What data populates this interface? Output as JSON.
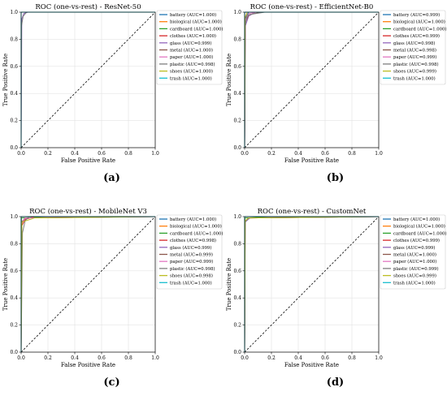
{
  "colors": [
    "#1f77b4",
    "#ff7f0e",
    "#2ca02c",
    "#d62728",
    "#9467bd",
    "#8c564b",
    "#e377c2",
    "#7f7f7f",
    "#bcbd22",
    "#17becf"
  ],
  "chart_data": [
    {
      "type": "line",
      "title": "ROC (one-vs-rest) - ResNet-50",
      "xlabel": "False Positive Rate",
      "ylabel": "True Positive Rate",
      "xlim": [
        0,
        1
      ],
      "ylim": [
        0,
        1
      ],
      "xticks": [
        "0.0",
        "0.2",
        "0.4",
        "0.6",
        "0.8",
        "1.0"
      ],
      "yticks": [
        "0.0",
        "0.2",
        "0.4",
        "0.6",
        "0.8",
        "1.0"
      ],
      "grid": true,
      "legend_position": "top-right",
      "caption": "(a)",
      "diagonal": true,
      "series": [
        {
          "name": "battery (AUC=1.000)",
          "x": [
            0,
            0.0,
            1
          ],
          "y": [
            0,
            1,
            1
          ]
        },
        {
          "name": "biological (AUC=1.000)",
          "x": [
            0,
            0.0,
            1
          ],
          "y": [
            0,
            1,
            1
          ]
        },
        {
          "name": "cardboard (AUC=1.000)",
          "x": [
            0,
            0.0,
            1
          ],
          "y": [
            0,
            1,
            1
          ]
        },
        {
          "name": "clothes (AUC=1.000)",
          "x": [
            0,
            0.0,
            1
          ],
          "y": [
            0,
            1,
            1
          ]
        },
        {
          "name": "glass (AUC=0.999)",
          "x": [
            0,
            0.005,
            0.02,
            0.05,
            1
          ],
          "y": [
            0,
            0.95,
            0.99,
            1,
            1
          ]
        },
        {
          "name": "metal (AUC=1.000)",
          "x": [
            0,
            0.0,
            1
          ],
          "y": [
            0,
            1,
            1
          ]
        },
        {
          "name": "paper (AUC=1.000)",
          "x": [
            0,
            0.0,
            1
          ],
          "y": [
            0,
            1,
            1
          ]
        },
        {
          "name": "plastic (AUC=0.998)",
          "x": [
            0,
            0.003,
            0.015,
            0.04,
            1
          ],
          "y": [
            0,
            0.9,
            0.97,
            1,
            1
          ]
        },
        {
          "name": "shoes (AUC=1.000)",
          "x": [
            0,
            0.0,
            1
          ],
          "y": [
            0,
            1,
            1
          ]
        },
        {
          "name": "trash (AUC=1.000)",
          "x": [
            0,
            0.0,
            1
          ],
          "y": [
            0,
            1,
            1
          ]
        }
      ]
    },
    {
      "type": "line",
      "title": "ROC (one-vs-rest) - EfficientNet-B0",
      "xlabel": "False Positive Rate",
      "ylabel": "True Positive Rate",
      "xlim": [
        0,
        1
      ],
      "ylim": [
        0,
        1
      ],
      "xticks": [
        "0.0",
        "0.2",
        "0.4",
        "0.6",
        "0.8",
        "1.0"
      ],
      "yticks": [
        "0.0",
        "0.2",
        "0.4",
        "0.6",
        "0.8",
        "1.0"
      ],
      "grid": true,
      "legend_position": "top-right",
      "caption": "(b)",
      "diagonal": true,
      "series": [
        {
          "name": "battery (AUC=0.999)",
          "x": [
            0,
            0.004,
            0.03,
            1
          ],
          "y": [
            0,
            0.95,
            1,
            1
          ]
        },
        {
          "name": "biological (AUC=1.000)",
          "x": [
            0,
            0.0,
            1
          ],
          "y": [
            0,
            1,
            1
          ]
        },
        {
          "name": "cardboard (AUC=1.000)",
          "x": [
            0,
            0.0,
            1
          ],
          "y": [
            0,
            1,
            1
          ]
        },
        {
          "name": "clothes (AUC=0.999)",
          "x": [
            0,
            0.004,
            0.02,
            1
          ],
          "y": [
            0,
            0.96,
            1,
            1
          ]
        },
        {
          "name": "glass (AUC=0.998)",
          "x": [
            0,
            0.006,
            0.03,
            0.08,
            1
          ],
          "y": [
            0,
            0.9,
            0.97,
            1,
            1
          ]
        },
        {
          "name": "metal (AUC=0.998)",
          "x": [
            0,
            0.005,
            0.03,
            0.12,
            1
          ],
          "y": [
            0,
            0.92,
            0.98,
            1,
            1
          ]
        },
        {
          "name": "paper (AUC=0.999)",
          "x": [
            0,
            0.004,
            0.03,
            0.09,
            1
          ],
          "y": [
            0,
            0.94,
            0.99,
            1,
            1
          ]
        },
        {
          "name": "plastic (AUC=0.998)",
          "x": [
            0,
            0.004,
            0.02,
            0.15,
            1
          ],
          "y": [
            0,
            0.9,
            0.98,
            1,
            1
          ]
        },
        {
          "name": "shoes (AUC=0.999)",
          "x": [
            0,
            0.003,
            0.02,
            1
          ],
          "y": [
            0,
            0.96,
            1,
            1
          ]
        },
        {
          "name": "trash (AUC=1.000)",
          "x": [
            0,
            0.0,
            1
          ],
          "y": [
            0,
            1,
            1
          ]
        }
      ]
    },
    {
      "type": "line",
      "title": "ROC (one-vs-rest) - MobileNet V3",
      "xlabel": "False Positive Rate",
      "ylabel": "True Positive Rate",
      "xlim": [
        0,
        1
      ],
      "ylim": [
        0,
        1
      ],
      "xticks": [
        "0.0",
        "0.2",
        "0.4",
        "0.6",
        "0.8",
        "1.0"
      ],
      "yticks": [
        "0.0",
        "0.2",
        "0.4",
        "0.6",
        "0.8",
        "1.0"
      ],
      "grid": true,
      "legend_position": "top-right",
      "caption": "(c)",
      "diagonal": true,
      "series": [
        {
          "name": "battery (AUC=1.000)",
          "x": [
            0,
            0.0,
            1
          ],
          "y": [
            0,
            1,
            1
          ]
        },
        {
          "name": "biological (AUC=1.000)",
          "x": [
            0,
            0.0,
            1
          ],
          "y": [
            0,
            1,
            1
          ]
        },
        {
          "name": "cardboard (AUC=1.000)",
          "x": [
            0,
            0.002,
            0.2,
            1
          ],
          "y": [
            0,
            0.99,
            1,
            1
          ]
        },
        {
          "name": "clothes (AUC=0.998)",
          "x": [
            0,
            0.004,
            0.03,
            0.1,
            1
          ],
          "y": [
            0,
            0.93,
            0.98,
            1,
            1
          ]
        },
        {
          "name": "glass (AUC=0.999)",
          "x": [
            0,
            0.005,
            0.03,
            1
          ],
          "y": [
            0,
            0.95,
            0.99,
            1
          ]
        },
        {
          "name": "metal (AUC=0.999)",
          "x": [
            0,
            0.004,
            0.03,
            1
          ],
          "y": [
            0,
            0.96,
            0.99,
            1
          ]
        },
        {
          "name": "paper (AUC=0.999)",
          "x": [
            0,
            0.004,
            0.03,
            1
          ],
          "y": [
            0,
            0.95,
            0.99,
            1
          ]
        },
        {
          "name": "plastic (AUC=0.998)",
          "x": [
            0,
            0.01,
            0.03,
            0.06,
            1
          ],
          "y": [
            0,
            0.88,
            0.97,
            1,
            1
          ]
        },
        {
          "name": "shoes (AUC=0.998)",
          "x": [
            0,
            0.006,
            0.1,
            1
          ],
          "y": [
            0,
            0.96,
            0.99,
            1
          ]
        },
        {
          "name": "trash (AUC=1.000)",
          "x": [
            0,
            0.0,
            1
          ],
          "y": [
            0,
            1,
            1
          ]
        }
      ]
    },
    {
      "type": "line",
      "title": "ROC (one-vs-rest) - CustomNet",
      "xlabel": "False Positive Rate",
      "ylabel": "True Positive Rate",
      "xlim": [
        0,
        1
      ],
      "ylim": [
        0,
        1
      ],
      "xticks": [
        "0.0",
        "0.2",
        "0.4",
        "0.6",
        "0.8",
        "1.0"
      ],
      "yticks": [
        "0.0",
        "0.2",
        "0.4",
        "0.6",
        "0.8",
        "1.0"
      ],
      "grid": true,
      "legend_position": "top-right",
      "caption": "(d)",
      "diagonal": true,
      "series": [
        {
          "name": "battery (AUC=1.000)",
          "x": [
            0,
            0.0,
            1
          ],
          "y": [
            0,
            1,
            1
          ]
        },
        {
          "name": "biological (AUC=1.000)",
          "x": [
            0,
            0.0,
            1
          ],
          "y": [
            0,
            1,
            1
          ]
        },
        {
          "name": "cardboard (AUC=1.000)",
          "x": [
            0,
            0.002,
            0.2,
            1
          ],
          "y": [
            0,
            0.99,
            1,
            1
          ]
        },
        {
          "name": "clothes (AUC=0.999)",
          "x": [
            0,
            0.004,
            0.03,
            1
          ],
          "y": [
            0,
            0.97,
            0.99,
            1
          ]
        },
        {
          "name": "glass (AUC=0.999)",
          "x": [
            0,
            0.005,
            0.04,
            1
          ],
          "y": [
            0,
            0.96,
            0.99,
            1
          ]
        },
        {
          "name": "metal (AUC=1.000)",
          "x": [
            0,
            0.0,
            1
          ],
          "y": [
            0,
            1,
            1
          ]
        },
        {
          "name": "paper (AUC=1.000)",
          "x": [
            0,
            0.0,
            1
          ],
          "y": [
            0,
            1,
            1
          ]
        },
        {
          "name": "plastic (AUC=0.999)",
          "x": [
            0,
            0.004,
            0.03,
            1
          ],
          "y": [
            0,
            0.96,
            0.99,
            1
          ]
        },
        {
          "name": "shoes (AUC=0.999)",
          "x": [
            0,
            0.004,
            0.03,
            1
          ],
          "y": [
            0,
            0.97,
            0.99,
            1
          ]
        },
        {
          "name": "trash (AUC=1.000)",
          "x": [
            0,
            0.0,
            1
          ],
          "y": [
            0,
            1,
            1
          ]
        }
      ]
    }
  ]
}
